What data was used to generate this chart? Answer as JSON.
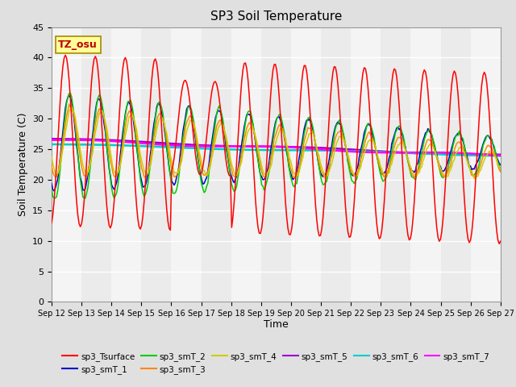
{
  "title": "SP3 Soil Temperature",
  "xlabel": "Time",
  "ylabel": "Soil Temperature (C)",
  "ylim": [
    0,
    45
  ],
  "yticks": [
    0,
    5,
    10,
    15,
    20,
    25,
    30,
    35,
    40,
    45
  ],
  "x_labels": [
    "Sep 12",
    "Sep 13",
    "Sep 14",
    "Sep 15",
    "Sep 16",
    "Sep 17",
    "Sep 18",
    "Sep 19",
    "Sep 20",
    "Sep 21",
    "Sep 22",
    "Sep 23",
    "Sep 24",
    "Sep 25",
    "Sep 26",
    "Sep 27"
  ],
  "tz_label": "TZ_osu",
  "tz_box_color": "#FFFF99",
  "tz_text_color": "#BB0000",
  "series_colors": {
    "sp3_Tsurface": "#FF0000",
    "sp3_smT_1": "#0000CC",
    "sp3_smT_2": "#00CC00",
    "sp3_smT_3": "#FF8800",
    "sp3_smT_4": "#CCCC00",
    "sp3_smT_5": "#9900CC",
    "sp3_smT_6": "#00CCCC",
    "sp3_smT_7": "#FF00FF"
  }
}
